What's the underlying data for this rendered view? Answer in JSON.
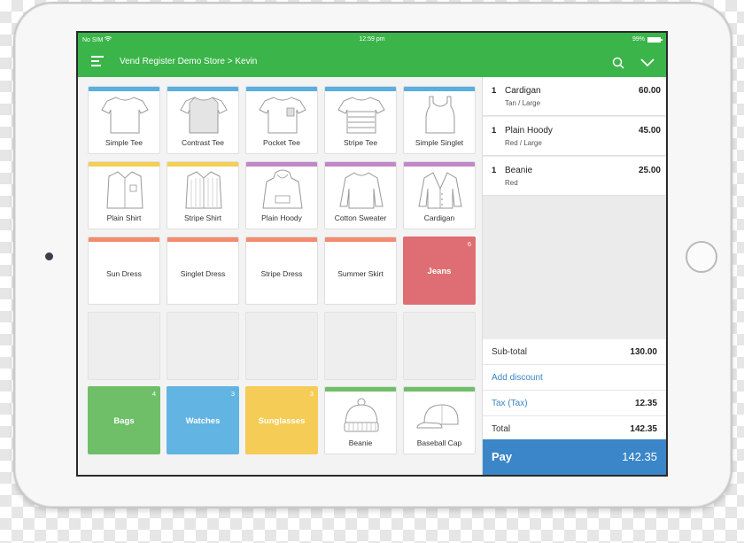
{
  "status_bar": {
    "carrier": "No SIM",
    "time": "12:59 pm",
    "battery": "99%"
  },
  "navbar": {
    "title": "Vend Register Demo Store > Kevin"
  },
  "colors": {
    "brand_green": "#3bb54a",
    "tee_blue": "#5aaee0",
    "shirt_yellow": "#f3cf53",
    "hoody_purple": "#c087c9",
    "dress_salmon": "#f28b6f",
    "jeans_red": "#de6e74",
    "bags_green": "#6ebf68",
    "watches_blue": "#62b4e3",
    "sunglasses_yellow": "#f5cc55",
    "pay_blue": "#3a86c8"
  },
  "products": [
    {
      "label": "Simple Tee",
      "icon": "tshirt-icon",
      "color": "#5aaee0"
    },
    {
      "label": "Contrast Tee",
      "icon": "contrast-tshirt-icon",
      "color": "#5aaee0"
    },
    {
      "label": "Pocket Tee",
      "icon": "pocket-tshirt-icon",
      "color": "#5aaee0"
    },
    {
      "label": "Stripe Tee",
      "icon": "striped-tshirt-icon",
      "color": "#5aaee0"
    },
    {
      "label": "Simple Singlet",
      "icon": "singlet-icon",
      "color": "#5aaee0"
    },
    {
      "label": "Plain Shirt",
      "icon": "shirt-icon",
      "color": "#f3cf53"
    },
    {
      "label": "Stripe Shirt",
      "icon": "striped-shirt-icon",
      "color": "#f3cf53"
    },
    {
      "label": "Plain Hoody",
      "icon": "hoody-icon",
      "color": "#c087c9"
    },
    {
      "label": "Cotton Sweater",
      "icon": "sweater-icon",
      "color": "#c087c9"
    },
    {
      "label": "Cardigan",
      "icon": "cardigan-icon",
      "color": "#c087c9"
    },
    {
      "label": "Sun Dress",
      "icon": "",
      "color": "#f28b6f"
    },
    {
      "label": "Singlet Dress",
      "icon": "",
      "color": "#f28b6f"
    },
    {
      "label": "Stripe Dress",
      "icon": "",
      "color": "#f28b6f"
    },
    {
      "label": "Summer Skirt",
      "icon": "",
      "color": "#f28b6f"
    },
    {
      "label": "Jeans",
      "count": "6",
      "color": "#de6e74"
    },
    {
      "label": "Bags",
      "count": "4",
      "color": "#6ebf68"
    },
    {
      "label": "Watches",
      "count": "3",
      "color": "#62b4e3"
    },
    {
      "label": "Sunglasses",
      "count": "3",
      "color": "#f5cc55"
    },
    {
      "label": "Beanie",
      "icon": "beanie-icon",
      "color": "#6ebf68"
    },
    {
      "label": "Baseball Cap",
      "icon": "baseball-cap-icon",
      "color": "#6ebf68"
    }
  ],
  "sale": {
    "items": [
      {
        "qty": "1",
        "name": "Cardigan",
        "variant": "Tan / Large",
        "price": "60.00"
      },
      {
        "qty": "1",
        "name": "Plain Hoody",
        "variant": "Red / Large",
        "price": "45.00"
      },
      {
        "qty": "1",
        "name": "Beanie",
        "variant": "Red",
        "price": "25.00"
      }
    ],
    "subtotal_label": "Sub-total",
    "subtotal": "130.00",
    "discount_label": "Add discount",
    "tax_label": "Tax (Tax)",
    "tax": "12.35",
    "total_label": "Total",
    "total": "142.35",
    "pay_label": "Pay",
    "pay_amount": "142.35"
  }
}
